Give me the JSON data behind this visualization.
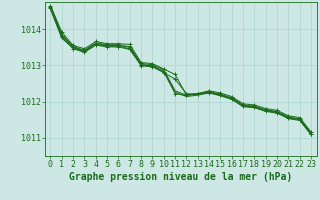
{
  "title": "Graphe pression niveau de la mer (hPa)",
  "xlabel_ticks": [
    0,
    1,
    2,
    3,
    4,
    5,
    6,
    7,
    8,
    9,
    10,
    11,
    12,
    13,
    14,
    15,
    16,
    17,
    18,
    19,
    20,
    21,
    22,
    23
  ],
  "ylim": [
    1010.5,
    1014.75
  ],
  "yticks": [
    1011,
    1012,
    1013,
    1014
  ],
  "background_color": "#cde8e4",
  "grid_color": "#aad4cc",
  "line_color": "#1a6b1a",
  "series_plain": [
    [
      1014.65,
      1013.85,
      1013.52,
      1013.42,
      1013.62,
      1013.57,
      1013.57,
      1013.5,
      1013.05,
      1013.02,
      1012.88,
      1012.3,
      1012.18,
      1012.22,
      1012.28,
      1012.2,
      1012.1,
      1011.9,
      1011.87,
      1011.77,
      1011.72,
      1011.57,
      1011.52,
      1011.12
    ],
    [
      1014.55,
      1013.75,
      1013.48,
      1013.38,
      1013.58,
      1013.53,
      1013.53,
      1013.46,
      1013.01,
      1012.98,
      1012.84,
      1012.26,
      1012.14,
      1012.18,
      1012.24,
      1012.16,
      1012.06,
      1011.86,
      1011.83,
      1011.73,
      1011.68,
      1011.53,
      1011.48,
      1011.08
    ]
  ],
  "series_marked": [
    [
      1014.65,
      1013.92,
      1013.55,
      1013.46,
      1013.66,
      1013.6,
      1013.6,
      1013.58,
      1013.08,
      1013.05,
      1012.9,
      1012.75,
      1012.18,
      1012.22,
      1012.3,
      1012.24,
      1012.14,
      1011.94,
      1011.91,
      1011.81,
      1011.76,
      1011.61,
      1011.56,
      1011.16
    ],
    [
      1014.62,
      1013.82,
      1013.5,
      1013.4,
      1013.6,
      1013.55,
      1013.55,
      1013.52,
      1013.02,
      1012.99,
      1012.82,
      1012.22,
      1012.17,
      1012.21,
      1012.26,
      1012.2,
      1012.1,
      1011.9,
      1011.87,
      1011.77,
      1011.72,
      1011.57,
      1011.52,
      1011.12
    ],
    [
      1014.58,
      1013.78,
      1013.46,
      1013.36,
      1013.56,
      1013.51,
      1013.51,
      1013.44,
      1012.99,
      1012.96,
      1012.8,
      1012.62,
      1012.22,
      1012.21,
      1012.25,
      1012.18,
      1012.08,
      1011.88,
      1011.85,
      1011.75,
      1011.7,
      1011.55,
      1011.5,
      1011.1
    ]
  ],
  "title_fontsize": 7,
  "tick_fontsize": 6
}
